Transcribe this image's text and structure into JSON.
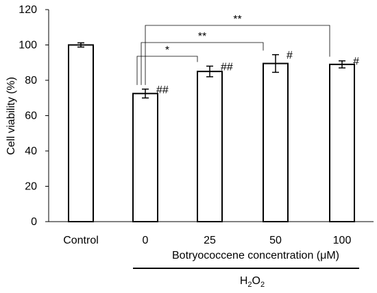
{
  "chart_data": {
    "type": "bar",
    "categories": [
      "Control",
      "0",
      "25",
      "50",
      "100"
    ],
    "values": [
      100,
      72.5,
      85,
      89.5,
      89
    ],
    "errors": [
      1.2,
      2.5,
      3,
      5,
      2
    ],
    "ylim": [
      0,
      120
    ],
    "yticks": [
      "0",
      "20",
      "40",
      "60",
      "80",
      "100",
      "120"
    ],
    "ylabel": "Cell viability (%)",
    "xlabel": "Botryococcene concentration (μM)",
    "group_label": {
      "main": "H",
      "sub": "2",
      "main2": "O",
      "sub2": "2"
    },
    "bar_annotations": [
      "",
      "##",
      "##",
      "#",
      "#"
    ],
    "significance": [
      {
        "from": "0",
        "to": "25",
        "label": "*"
      },
      {
        "from": "0",
        "to": "50",
        "label": "**"
      },
      {
        "from": "0",
        "to": "100",
        "label": "**"
      }
    ],
    "bar_fill": "#ffffff",
    "bar_stroke": "#000000",
    "grid": false
  }
}
